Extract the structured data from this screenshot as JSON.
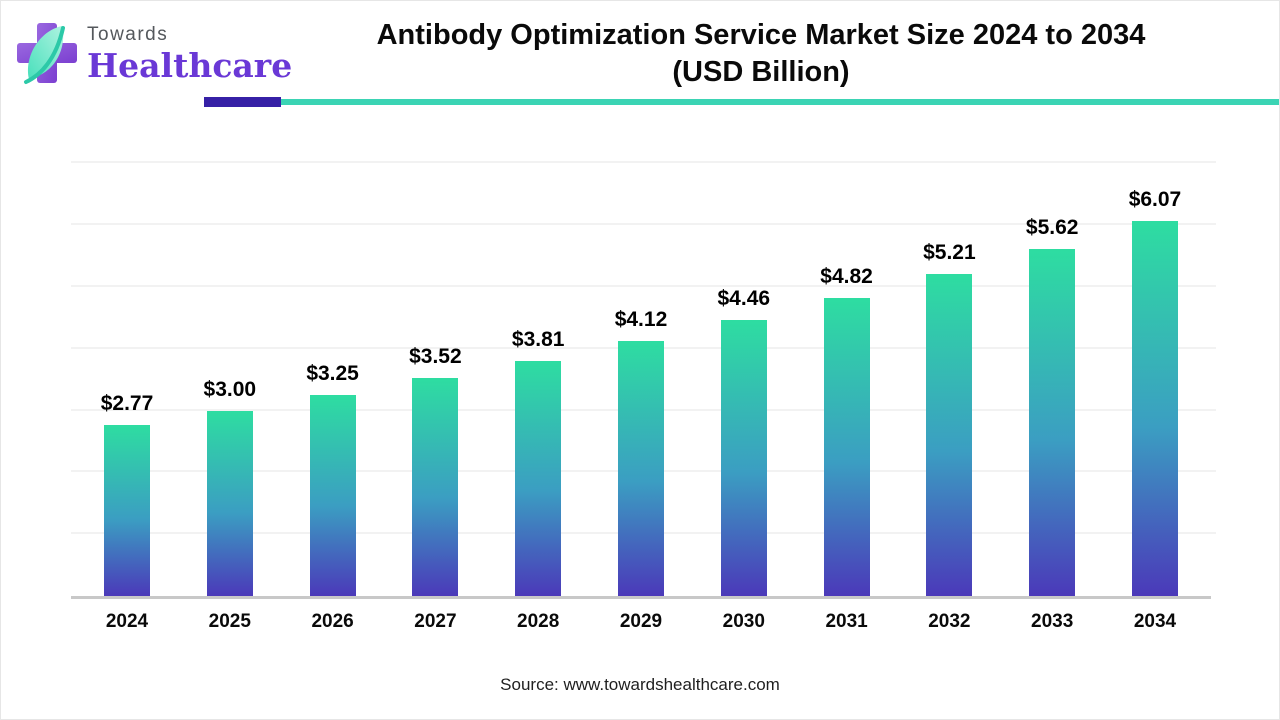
{
  "header": {
    "logo_line1": "Towards",
    "logo_line2": "Healthcare",
    "title_line1": "Antibody Optimization Service Market Size 2024 to 2034",
    "title_line2": "(USD Billion)",
    "accent_purple": "#3620a6",
    "accent_teal": "#3bd4b4"
  },
  "chart_data": {
    "type": "bar",
    "title": "Antibody Optimization Service Market Size 2024 to 2034 (USD Billion)",
    "categories": [
      "2024",
      "2025",
      "2026",
      "2027",
      "2028",
      "2029",
      "2030",
      "2031",
      "2032",
      "2033",
      "2034"
    ],
    "values": [
      2.77,
      3.0,
      3.25,
      3.52,
      3.81,
      4.12,
      4.46,
      4.82,
      5.21,
      5.62,
      6.07
    ],
    "value_labels": [
      "$2.77",
      "$3.00",
      "$3.25",
      "$3.52",
      "$3.81",
      "$4.12",
      "$4.46",
      "$4.82",
      "$5.21",
      "$5.62",
      "$6.07"
    ],
    "xlabel": "",
    "ylabel": "",
    "ylim": [
      0,
      7.2
    ],
    "gridline_step": 1,
    "grid": "faint horizontal",
    "legend": "none",
    "bar_gradient_top": "#2edda1",
    "bar_gradient_mid": "#3b9ec2",
    "bar_gradient_bottom": "#4b39b9"
  },
  "footer": {
    "source": "Source: www.towardshealthcare.com"
  }
}
